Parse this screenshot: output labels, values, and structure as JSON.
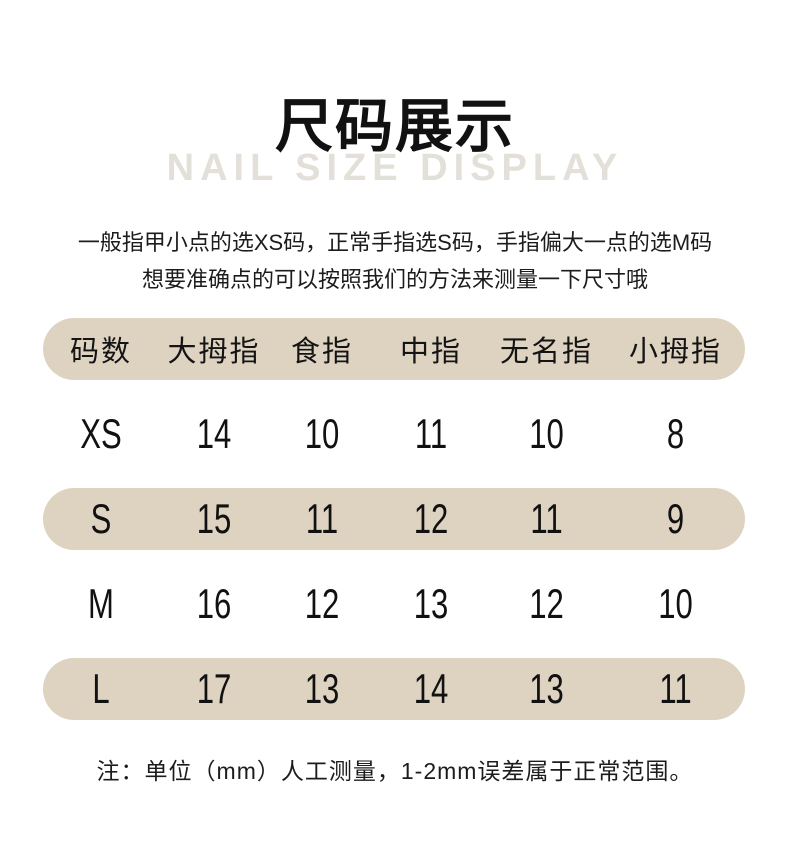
{
  "page": {
    "title": "尺码展示",
    "subtitle_watermark": "NAIL SIZE DISPLAY",
    "description_line1": "一般指甲小点的选XS码，正常手指选S码，手指偏大一点的选M码",
    "description_line2": "想要准确点的可以按照我们的方法来测量一下尺寸哦",
    "footnote": "注：单位（mm）人工测量，1-2mm误差属于正常范围。"
  },
  "chart_data": {
    "type": "table",
    "title": "尺码展示",
    "subtitle": "NAIL SIZE DISPLAY",
    "unit": "mm",
    "columns": [
      "码数",
      "大拇指",
      "食指",
      "中指",
      "无名指",
      "小拇指"
    ],
    "rows": [
      [
        "XS",
        "14",
        "10",
        "11",
        "10",
        "8"
      ],
      [
        "S",
        "15",
        "11",
        "12",
        "11",
        "9"
      ],
      [
        "M",
        "16",
        "12",
        "13",
        "12",
        "10"
      ],
      [
        "L",
        "17",
        "13",
        "14",
        "13",
        "11"
      ]
    ],
    "layout_hints": {
      "shaded_row_indices": [
        1,
        3
      ],
      "header_shaded": true
    }
  },
  "colors": {
    "row-shaded": "#ded3c1",
    "watermark": "#e3e0d9",
    "text": "#111111"
  }
}
